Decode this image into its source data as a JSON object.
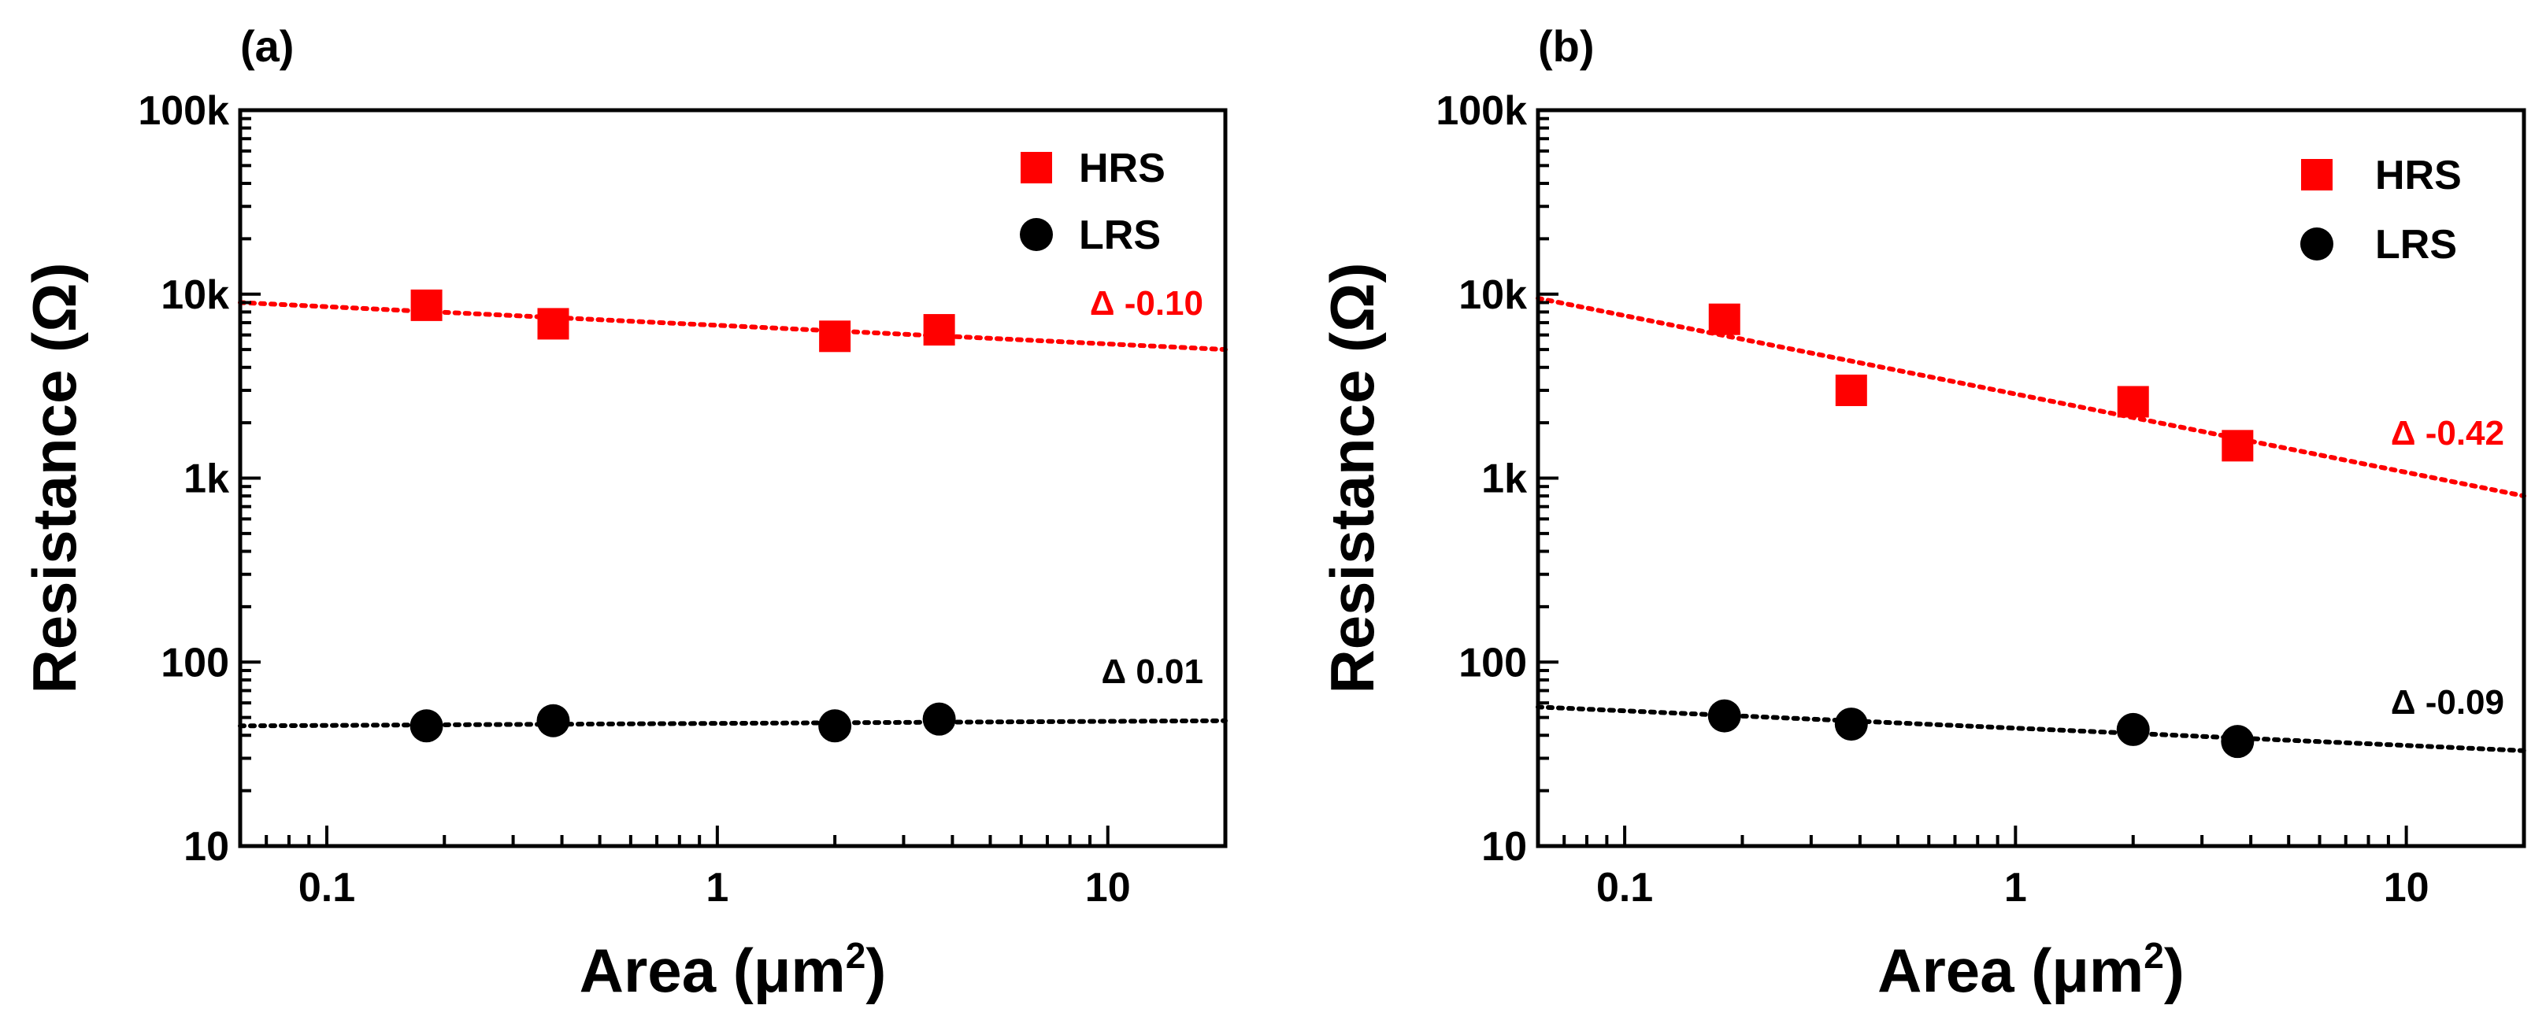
{
  "chart_data": [
    {
      "type": "scatter",
      "panel_label": "(a)",
      "xscale": "log",
      "yscale": "log",
      "xlim": [
        0.06,
        20
      ],
      "ylim": [
        10,
        100000
      ],
      "xticks": [
        0.1,
        1,
        10
      ],
      "xtick_labels": [
        "0.1",
        "1",
        "10"
      ],
      "yticks": [
        10,
        100,
        1000,
        10000,
        100000
      ],
      "ytick_labels": [
        "10",
        "100",
        "1k",
        "10k",
        "100k"
      ],
      "xlabel": "Area (μm",
      "xlabel_superscript": "2",
      "xlabel_close": ")",
      "ylabel": "Resistance (Ω)",
      "legend_position": "top-right",
      "series": [
        {
          "name": "HRS",
          "marker": "square",
          "color": "#ff0000",
          "x": [
            0.18,
            0.38,
            2.0,
            3.7
          ],
          "y": [
            8700,
            6900,
            5900,
            6400
          ],
          "fit": {
            "x": [
              0.06,
              20
            ],
            "y": [
              9000,
              5000
            ]
          },
          "slope_label": "Δ -0.10"
        },
        {
          "name": "LRS",
          "marker": "circle",
          "color": "#000000",
          "x": [
            0.18,
            0.38,
            2.0,
            3.7
          ],
          "y": [
            45,
            48,
            45,
            49
          ],
          "fit": {
            "x": [
              0.06,
              20
            ],
            "y": [
              45,
              48
            ]
          },
          "slope_label": "Δ 0.01"
        }
      ]
    },
    {
      "type": "scatter",
      "panel_label": "(b)",
      "xscale": "log",
      "yscale": "log",
      "xlim": [
        0.06,
        20
      ],
      "ylim": [
        10,
        100000
      ],
      "xticks": [
        0.1,
        1,
        10
      ],
      "xtick_labels": [
        "0.1",
        "1",
        "10"
      ],
      "yticks": [
        10,
        100,
        1000,
        10000,
        100000
      ],
      "ytick_labels": [
        "10",
        "100",
        "1k",
        "10k",
        "100k"
      ],
      "xlabel": "Area (μm",
      "xlabel_superscript": "2",
      "xlabel_close": ")",
      "ylabel": "Resistance (Ω)",
      "legend_position": "top-right",
      "series": [
        {
          "name": "HRS",
          "marker": "square",
          "color": "#ff0000",
          "x": [
            0.18,
            0.38,
            2.0,
            3.7
          ],
          "y": [
            7300,
            3000,
            2600,
            1500
          ],
          "fit": {
            "x": [
              0.06,
              20
            ],
            "y": [
              9500,
              800
            ]
          },
          "slope_label": "Δ -0.42"
        },
        {
          "name": "LRS",
          "marker": "circle",
          "color": "#000000",
          "x": [
            0.18,
            0.38,
            2.0,
            3.7
          ],
          "y": [
            51,
            46,
            43,
            37
          ],
          "fit": {
            "x": [
              0.06,
              20
            ],
            "y": [
              57,
              33
            ]
          },
          "slope_label": "Δ -0.09"
        }
      ]
    }
  ]
}
